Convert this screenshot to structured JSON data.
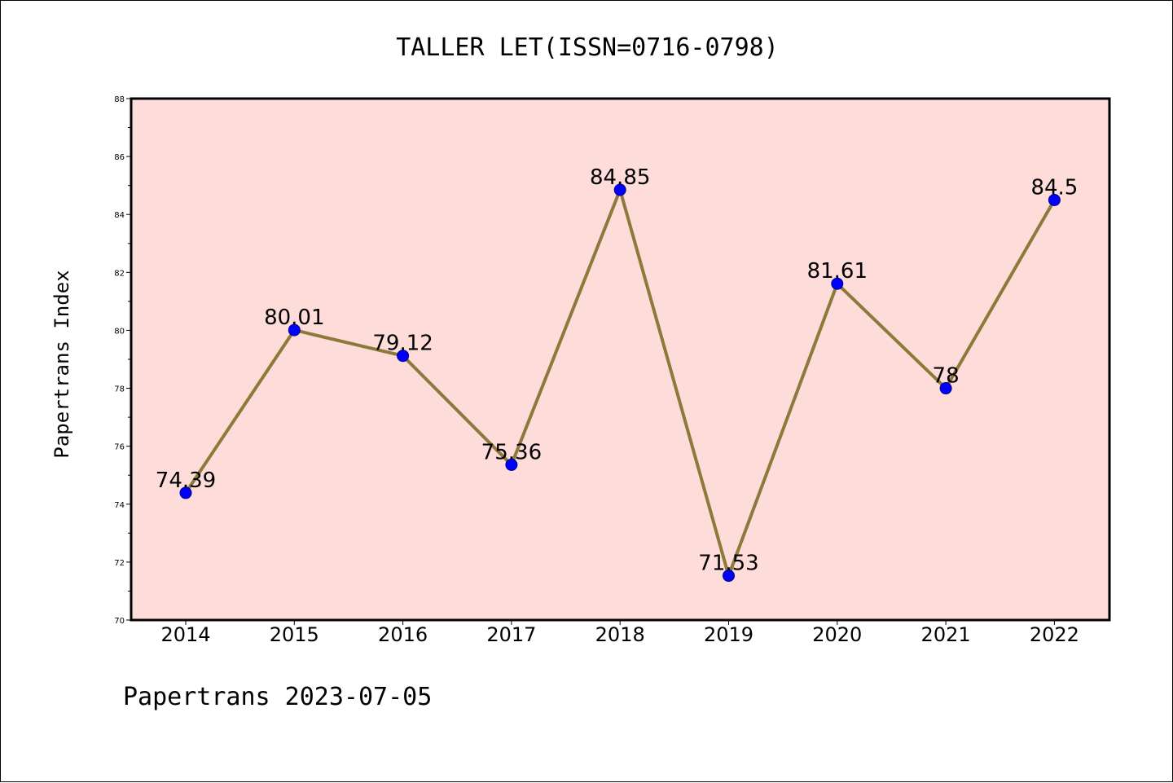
{
  "chart_data": {
    "type": "line",
    "title": "TALLER LET(ISSN=0716-0798)",
    "xlabel": "",
    "ylabel": "Papertrans Index",
    "categories": [
      "2014",
      "2015",
      "2016",
      "2017",
      "2018",
      "2019",
      "2020",
      "2021",
      "2022"
    ],
    "values": [
      74.39,
      80.01,
      79.12,
      75.36,
      84.85,
      71.53,
      81.61,
      78,
      84.5
    ],
    "data_labels": [
      "74.39",
      "80.01",
      "79.12",
      "75.36",
      "84.85",
      "71.53",
      "81.61",
      "78",
      "84.5"
    ],
    "ylim": [
      70,
      88
    ],
    "yticks": [
      70,
      72,
      74,
      76,
      78,
      80,
      82,
      84,
      86,
      88
    ],
    "ytick_labels": [
      "70",
      "72",
      "74",
      "76",
      "78",
      "80",
      "82",
      "84",
      "86",
      "88"
    ],
    "grid": false,
    "legend": "none",
    "colors": {
      "line": "#8b7a3a",
      "marker": "#0000ff",
      "plot_background": "#fddcda",
      "axes": "#000000"
    },
    "footer": "Papertrans 2023-07-05"
  }
}
